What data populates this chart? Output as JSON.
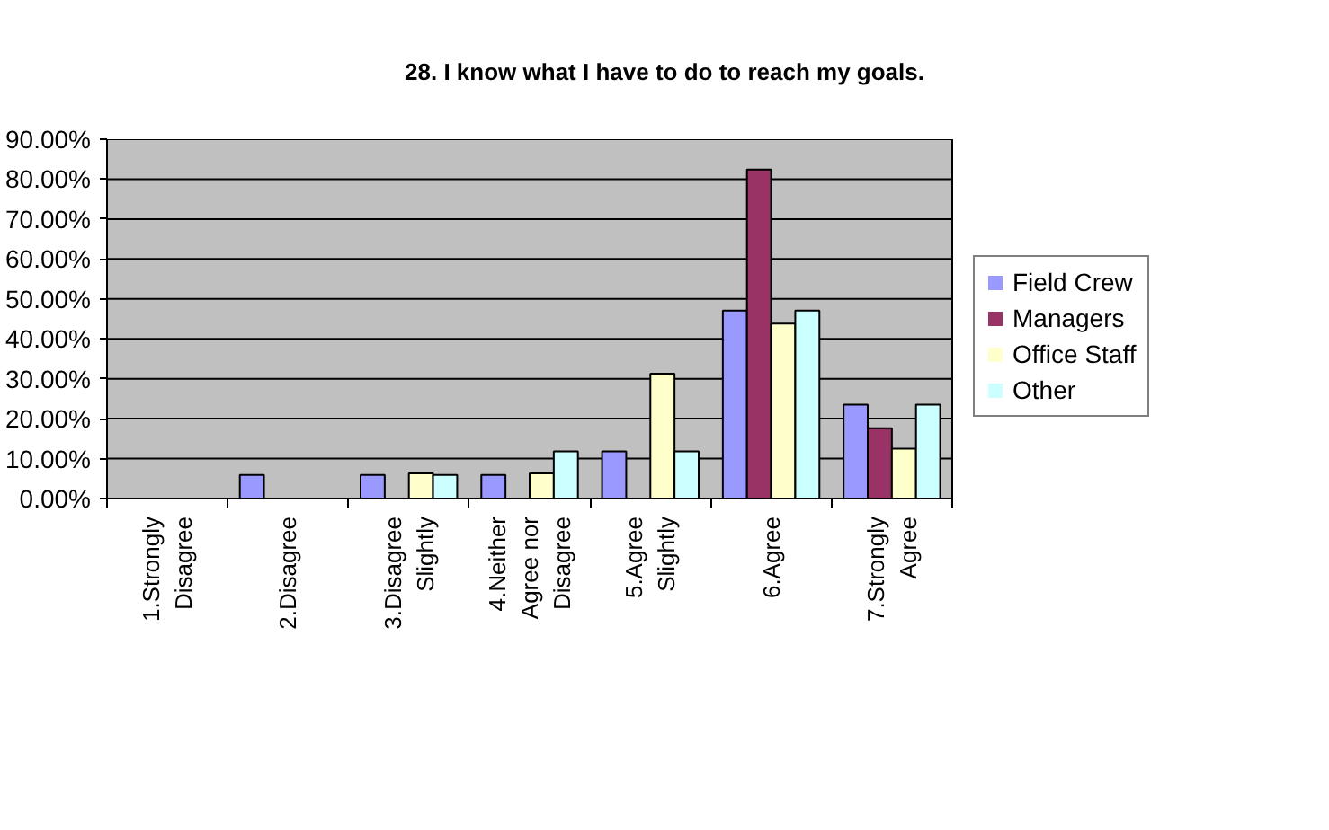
{
  "chart_data": {
    "type": "bar",
    "title": "28. I know what I have to do to reach my goals.",
    "categories": [
      "1.Strongly Disagree",
      "2.Disagree",
      "3.Disagree Slightly",
      "4.Neither Agree nor Disagree",
      "5.Agree Slightly",
      "6.Agree",
      "7.Strongly Agree"
    ],
    "series": [
      {
        "name": "Field Crew",
        "color": "#9999ff",
        "values": [
          0,
          5.9,
          5.9,
          5.9,
          11.8,
          47.1,
          23.5
        ]
      },
      {
        "name": "Managers",
        "color": "#993366",
        "values": [
          0,
          0,
          0,
          0,
          0,
          82.4,
          17.6
        ]
      },
      {
        "name": "Office Staff",
        "color": "#ffffcc",
        "values": [
          0,
          0,
          6.3,
          6.3,
          31.3,
          43.8,
          12.5
        ]
      },
      {
        "name": "Other",
        "color": "#ccffff",
        "values": [
          0,
          0,
          5.9,
          11.8,
          11.8,
          47.1,
          23.5
        ]
      }
    ],
    "ylim": [
      0,
      90
    ],
    "yticks": [
      {
        "value": 0,
        "label": "0.00%"
      },
      {
        "value": 10,
        "label": "10.00%"
      },
      {
        "value": 20,
        "label": "20.00%"
      },
      {
        "value": 30,
        "label": "30.00%"
      },
      {
        "value": 40,
        "label": "40.00%"
      },
      {
        "value": 50,
        "label": "50.00%"
      },
      {
        "value": 60,
        "label": "60.00%"
      },
      {
        "value": 70,
        "label": "70.00%"
      },
      {
        "value": 80,
        "label": "80.00%"
      },
      {
        "value": 90,
        "label": "90.00%"
      }
    ],
    "grid": "y",
    "legend": "right"
  }
}
